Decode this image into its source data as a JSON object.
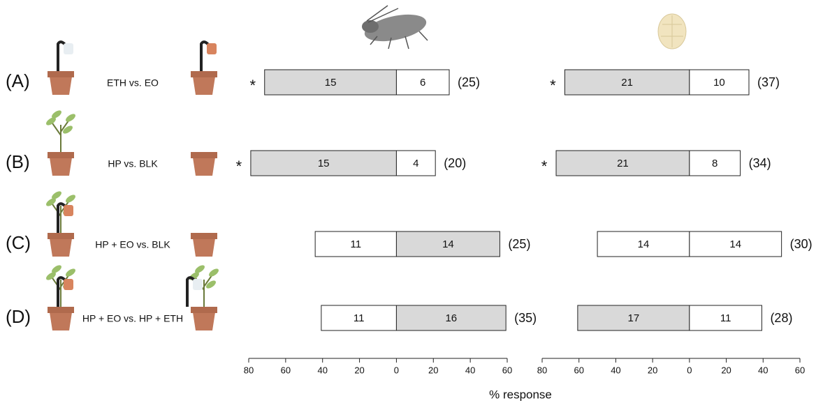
{
  "rows": [
    {
      "letter": "(A)",
      "comparison": "ETH vs. EO"
    },
    {
      "letter": "(B)",
      "comparison": "HP vs. BLK"
    },
    {
      "letter": "(C)",
      "comparison": "HP + EO vs. BLK"
    },
    {
      "letter": "(D)",
      "comparison": "HP + EO vs. HP + ETH"
    }
  ],
  "xlabel": "% response",
  "chart_data": [
    {
      "type": "bar",
      "series": [
        {
          "values": [
            -71.4,
            -78.9,
            -44,
            -40.7
          ],
          "counts": [
            15,
            15,
            11,
            11
          ],
          "colors": [
            "#d9d9d9",
            "#d9d9d9",
            "#ffffff",
            "#ffffff"
          ]
        },
        {
          "values": [
            28.6,
            21.1,
            56,
            59.3
          ],
          "counts": [
            6,
            4,
            14,
            16
          ],
          "colors": [
            "#ffffff",
            "#ffffff",
            "#d9d9d9",
            "#d9d9d9"
          ]
        }
      ],
      "totals": [
        "(25)",
        "(20)",
        "(25)",
        "(35)"
      ],
      "significance": [
        "*",
        "*",
        null,
        null
      ],
      "xlim": [
        -80,
        60
      ],
      "xticks": [
        {
          "value": -80,
          "label": "80"
        },
        {
          "value": -60,
          "label": "60"
        },
        {
          "value": -40,
          "label": "40"
        },
        {
          "value": -20,
          "label": "20"
        },
        0,
        20,
        40,
        60
      ]
    },
    {
      "type": "bar",
      "series": [
        {
          "values": [
            -67.7,
            -72.4,
            -50,
            -60.7
          ],
          "counts": [
            21,
            21,
            14,
            17
          ],
          "colors": [
            "#d9d9d9",
            "#d9d9d9",
            "#ffffff",
            "#d9d9d9"
          ]
        },
        {
          "values": [
            32.3,
            27.6,
            50,
            39.3
          ],
          "counts": [
            10,
            8,
            14,
            11
          ],
          "colors": [
            "#ffffff",
            "#ffffff",
            "#ffffff",
            "#ffffff"
          ]
        }
      ],
      "totals": [
        "(37)",
        "(34)",
        "(30)",
        "(28)"
      ],
      "significance": [
        "*",
        "*",
        null,
        null
      ],
      "xlim": [
        -80,
        60
      ],
      "xticks": [
        {
          "value": -80,
          "label": "80"
        },
        {
          "value": -60,
          "label": "60"
        },
        {
          "value": -40,
          "label": "40"
        },
        {
          "value": -20,
          "label": "20"
        },
        0,
        20,
        40,
        60
      ]
    }
  ]
}
